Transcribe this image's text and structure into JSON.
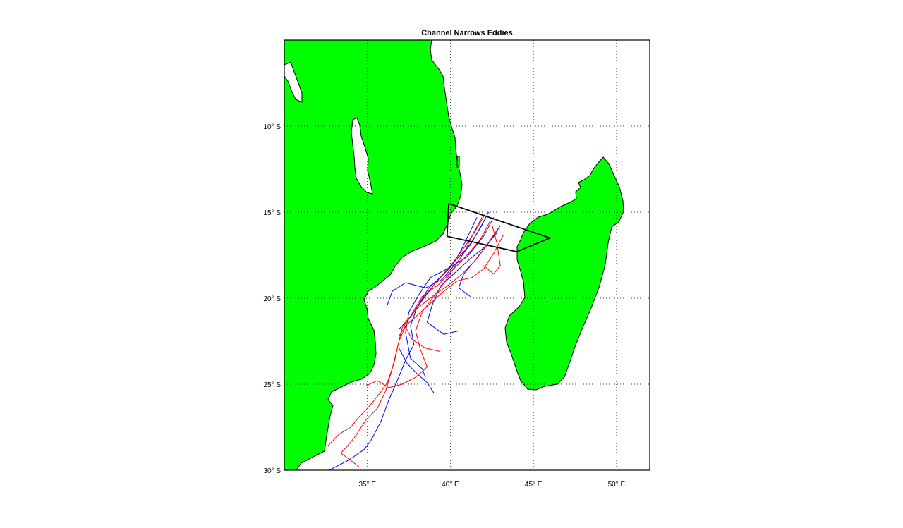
{
  "title": "Channel Narrows Eddies",
  "x_ticks": [
    {
      "lon": 35,
      "label": "35° E"
    },
    {
      "lon": 40,
      "label": "40° E"
    },
    {
      "lon": 45,
      "label": "45° E"
    },
    {
      "lon": 50,
      "label": "50° E"
    }
  ],
  "y_ticks": [
    {
      "lat": -10,
      "label": "10° S"
    },
    {
      "lat": -15,
      "label": "15° S"
    },
    {
      "lat": -20,
      "label": "20° S"
    },
    {
      "lat": -25,
      "label": "25° S"
    },
    {
      "lat": -30,
      "label": "30° S"
    }
  ],
  "colors": {
    "land": "#00ff00",
    "series_a": "#0000ff",
    "series_b": "#ff0000",
    "region_box": "#000000"
  },
  "chart_data": {
    "type": "line",
    "title": "Channel Narrows Eddies",
    "xlabel": "",
    "ylabel": "",
    "xlim": [
      30,
      52
    ],
    "ylim": [
      -30,
      -5
    ],
    "grid": true,
    "region_box": [
      [
        39.9,
        -14.5
      ],
      [
        46.0,
        -16.5
      ],
      [
        44.0,
        -17.3
      ],
      [
        39.8,
        -16.4
      ],
      [
        39.9,
        -14.5
      ]
    ],
    "series": [
      {
        "color": "#0000ff",
        "tracks": [
          [
            [
              42.3,
              -15.0
            ],
            [
              41.8,
              -15.9
            ],
            [
              41.2,
              -16.9
            ],
            [
              40.4,
              -17.7
            ],
            [
              39.6,
              -18.6
            ],
            [
              38.7,
              -19.4
            ],
            [
              38.0,
              -20.5
            ],
            [
              37.6,
              -21.6
            ],
            [
              37.8,
              -22.7
            ],
            [
              37.3,
              -23.6
            ],
            [
              36.8,
              -24.8
            ],
            [
              36.3,
              -25.9
            ],
            [
              35.8,
              -27.2
            ],
            [
              35.2,
              -28.3
            ],
            [
              34.8,
              -28.8
            ],
            [
              33.9,
              -29.4
            ],
            [
              32.7,
              -30.0
            ]
          ],
          [
            [
              42.6,
              -15.3
            ],
            [
              42.0,
              -16.4
            ],
            [
              41.0,
              -17.6
            ],
            [
              39.8,
              -18.3
            ],
            [
              38.8,
              -18.8
            ],
            [
              38.1,
              -19.8
            ],
            [
              37.5,
              -20.8
            ],
            [
              37.3,
              -22.0
            ],
            [
              37.6,
              -23.5
            ],
            [
              38.3,
              -24.1
            ],
            [
              38.5,
              -24.6
            ]
          ],
          [
            [
              42.0,
              -15.6
            ],
            [
              41.3,
              -16.7
            ],
            [
              40.5,
              -17.8
            ],
            [
              39.5,
              -18.9
            ],
            [
              38.5,
              -19.4
            ],
            [
              37.3,
              -19.1
            ],
            [
              36.5,
              -19.6
            ],
            [
              36.2,
              -20.4
            ]
          ],
          [
            [
              43.0,
              -15.8
            ],
            [
              42.3,
              -16.8
            ],
            [
              41.4,
              -17.9
            ],
            [
              40.8,
              -18.6
            ],
            [
              40.5,
              -19.4
            ],
            [
              41.2,
              -19.9
            ]
          ],
          [
            [
              41.6,
              -15.3
            ],
            [
              41.1,
              -16.3
            ],
            [
              40.6,
              -17.3
            ],
            [
              40.0,
              -18.2
            ],
            [
              39.2,
              -19.0
            ],
            [
              38.4,
              -20.0
            ],
            [
              37.6,
              -21.1
            ],
            [
              36.9,
              -21.8
            ],
            [
              36.9,
              -22.9
            ],
            [
              37.4,
              -23.8
            ],
            [
              38.0,
              -24.4
            ],
            [
              38.6,
              -24.9
            ],
            [
              39.0,
              -25.5
            ]
          ],
          [
            [
              42.8,
              -16.2
            ],
            [
              42.1,
              -17.0
            ],
            [
              41.2,
              -17.7
            ],
            [
              40.3,
              -18.5
            ],
            [
              39.4,
              -19.3
            ],
            [
              38.9,
              -20.4
            ],
            [
              38.6,
              -21.4
            ],
            [
              39.6,
              -22.1
            ],
            [
              40.5,
              -21.9
            ]
          ]
        ]
      },
      {
        "color": "#ff0000",
        "tracks": [
          [
            [
              42.1,
              -15.1
            ],
            [
              41.5,
              -16.1
            ],
            [
              40.8,
              -17.1
            ],
            [
              40.1,
              -18.0
            ],
            [
              39.3,
              -18.9
            ],
            [
              38.5,
              -19.8
            ],
            [
              37.8,
              -20.8
            ],
            [
              37.1,
              -21.7
            ],
            [
              36.8,
              -22.9
            ],
            [
              36.5,
              -24.1
            ],
            [
              36.1,
              -25.4
            ],
            [
              35.6,
              -26.4
            ],
            [
              34.9,
              -27.1
            ],
            [
              34.3,
              -28.0
            ],
            [
              33.8,
              -28.6
            ],
            [
              33.4,
              -29.0
            ],
            [
              34.5,
              -29.8
            ]
          ],
          [
            [
              42.4,
              -15.5
            ],
            [
              41.8,
              -16.6
            ],
            [
              41.0,
              -17.5
            ],
            [
              40.2,
              -18.3
            ],
            [
              39.3,
              -19.2
            ],
            [
              38.3,
              -19.9
            ],
            [
              37.5,
              -21.2
            ],
            [
              36.9,
              -22.5
            ],
            [
              36.6,
              -23.8
            ],
            [
              36.2,
              -24.9
            ],
            [
              35.7,
              -25.6
            ],
            [
              35.1,
              -26.3
            ],
            [
              34.5,
              -26.9
            ],
            [
              34.0,
              -27.5
            ],
            [
              33.3,
              -27.9
            ],
            [
              32.6,
              -28.6
            ]
          ],
          [
            [
              42.9,
              -15.9
            ],
            [
              42.2,
              -16.9
            ],
            [
              41.5,
              -17.8
            ],
            [
              40.7,
              -18.6
            ],
            [
              39.8,
              -19.3
            ],
            [
              38.9,
              -19.9
            ],
            [
              38.0,
              -20.6
            ],
            [
              37.2,
              -21.5
            ],
            [
              37.7,
              -22.4
            ],
            [
              38.5,
              -22.9
            ],
            [
              39.4,
              -23.1
            ]
          ],
          [
            [
              41.9,
              -15.3
            ],
            [
              41.4,
              -16.2
            ],
            [
              40.9,
              -17.2
            ],
            [
              40.3,
              -18.1
            ],
            [
              39.7,
              -19.0
            ],
            [
              39.0,
              -19.9
            ],
            [
              38.3,
              -20.8
            ],
            [
              37.9,
              -21.9
            ],
            [
              38.2,
              -23.0
            ],
            [
              38.6,
              -24.0
            ],
            [
              37.9,
              -24.6
            ],
            [
              37.1,
              -25.0
            ],
            [
              36.3,
              -25.2
            ],
            [
              35.6,
              -24.8
            ],
            [
              34.9,
              -25.1
            ]
          ],
          [
            [
              43.2,
              -16.3
            ],
            [
              42.6,
              -17.4
            ],
            [
              42.0,
              -18.3
            ],
            [
              41.3,
              -18.8
            ],
            [
              40.4,
              -19.0
            ],
            [
              39.6,
              -19.6
            ],
            [
              38.8,
              -20.3
            ],
            [
              38.0,
              -21.0
            ],
            [
              37.3,
              -21.6
            ],
            [
              36.9,
              -22.2
            ]
          ],
          [
            [
              42.5,
              -15.7
            ],
            [
              42.8,
              -16.8
            ],
            [
              43.0,
              -18.1
            ],
            [
              42.6,
              -18.6
            ],
            [
              42.0,
              -18.1
            ]
          ]
        ]
      }
    ]
  }
}
